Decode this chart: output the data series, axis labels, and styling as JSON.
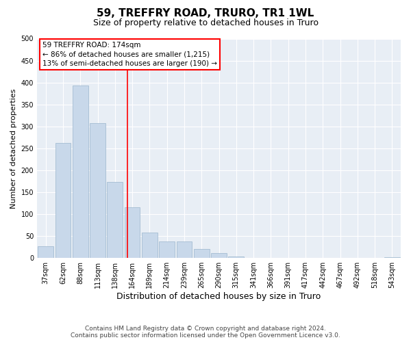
{
  "title": "59, TREFFRY ROAD, TRURO, TR1 1WL",
  "subtitle": "Size of property relative to detached houses in Truro",
  "xlabel": "Distribution of detached houses by size in Truro",
  "ylabel": "Number of detached properties",
  "bar_color": "#c8d8ea",
  "bar_edge_color": "#9ab5cc",
  "background_color": "#e8eef5",
  "grid_color": "#ffffff",
  "categories": [
    "37sqm",
    "62sqm",
    "88sqm",
    "113sqm",
    "138sqm",
    "164sqm",
    "189sqm",
    "214sqm",
    "239sqm",
    "265sqm",
    "290sqm",
    "315sqm",
    "341sqm",
    "366sqm",
    "391sqm",
    "417sqm",
    "442sqm",
    "467sqm",
    "492sqm",
    "518sqm",
    "543sqm"
  ],
  "values": [
    27,
    263,
    393,
    307,
    173,
    115,
    58,
    37,
    37,
    20,
    11,
    3,
    0,
    0,
    0,
    0,
    0,
    1,
    0,
    0,
    2
  ],
  "ylim": [
    0,
    500
  ],
  "yticks": [
    0,
    50,
    100,
    150,
    200,
    250,
    300,
    350,
    400,
    450,
    500
  ],
  "marker_label": "59 TREFFRY ROAD: 174sqm",
  "annotation_line1": "← 86% of detached houses are smaller (1,215)",
  "annotation_line2": "13% of semi-detached houses are larger (190) →",
  "footer1": "Contains HM Land Registry data © Crown copyright and database right 2024.",
  "footer2": "Contains public sector information licensed under the Open Government Licence v3.0.",
  "red_line_x": 4.72,
  "title_fontsize": 11,
  "subtitle_fontsize": 9,
  "annotation_fontsize": 7.5,
  "ylabel_fontsize": 8,
  "xlabel_fontsize": 9,
  "tick_fontsize": 7
}
